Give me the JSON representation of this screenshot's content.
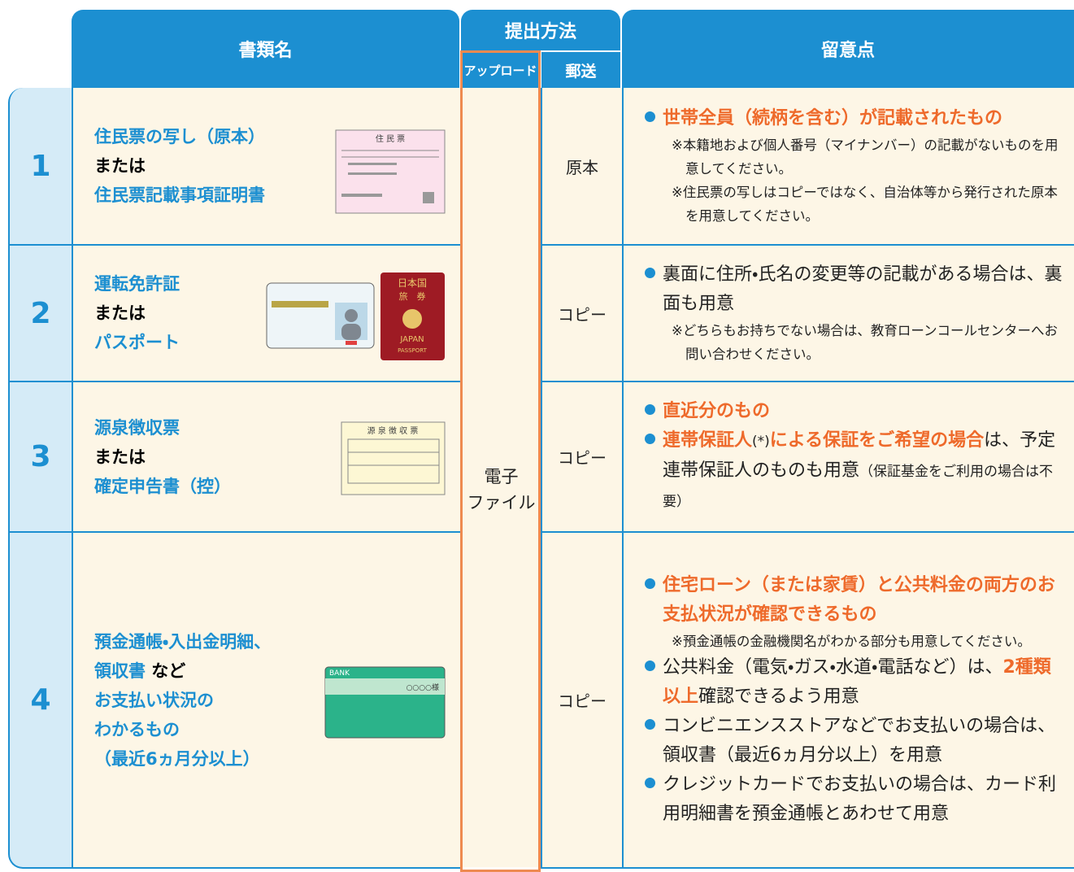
{
  "header": {
    "document_name": "書類名",
    "submission_method": "提出方法",
    "upload": "アップロード",
    "mail": "郵送",
    "notes": "留意点"
  },
  "upload_cell": [
    "電子",
    "ファイル"
  ],
  "rows": [
    {
      "number": "1",
      "document": [
        [
          {
            "text": "住民票の写し（原本）",
            "emphasis": true
          }
        ],
        [
          {
            "text": "または"
          }
        ],
        [
          {
            "text": "住民票記載事項証明書",
            "emphasis": true
          }
        ]
      ],
      "illustration": [
        "住 民 票"
      ],
      "mail": "原本",
      "notes": [
        {
          "kind": "bullet",
          "parts": [
            {
              "text": "世帯全員（続柄を含む）が記載されたもの",
              "emphasis": true
            }
          ]
        },
        {
          "kind": "remark",
          "parts": [
            {
              "text": "※本籍地および個人番号（マイナンバー）の記載がないものを用意してください。"
            }
          ]
        },
        {
          "kind": "remark",
          "parts": [
            {
              "text": "※住民票の写しはコピーではなく、自治体等から発行された原本を用意してください。"
            }
          ]
        }
      ]
    },
    {
      "number": "2",
      "document": [
        [
          {
            "text": "運転免許証",
            "emphasis": true
          }
        ],
        [
          {
            "text": "または"
          }
        ],
        [
          {
            "text": "パスポート",
            "emphasis": true
          }
        ]
      ],
      "illustration": [
        "日本国",
        "旅　券",
        "JAPAN",
        "PASSPORT"
      ],
      "mail": "コピー",
      "notes": [
        {
          "kind": "bullet",
          "parts": [
            {
              "text": "裏面に住所・氏名の変更等の記載がある場合は、裏面も用意"
            }
          ]
        },
        {
          "kind": "remark",
          "parts": [
            {
              "text": "※どちらもお持ちでない場合は、教育ローンコールセンターへお問い合わせください。"
            }
          ]
        }
      ]
    },
    {
      "number": "3",
      "document": [
        [
          {
            "text": "源泉徴収票",
            "emphasis": true
          }
        ],
        [
          {
            "text": "または"
          }
        ],
        [
          {
            "text": "確定申告書（控）",
            "emphasis": true
          }
        ]
      ],
      "illustration": [
        "源 泉 徴 収 票"
      ],
      "mail": "コピー",
      "notes": [
        {
          "kind": "bullet",
          "parts": [
            {
              "text": "直近分のもの",
              "emphasis": true
            }
          ]
        },
        {
          "kind": "bullet",
          "parts": [
            {
              "text": "連帯保証人",
              "emphasis": true
            },
            {
              "text": "(*)",
              "small": true
            },
            {
              "text": "による保証をご希望の場合",
              "emphasis": true
            },
            {
              "text": "は、予定連帯保証人のものも用意"
            },
            {
              "text": "（保証基金をご利用の場合は不要）",
              "small": true
            }
          ]
        }
      ]
    },
    {
      "number": "4",
      "document": [
        [
          {
            "text": "預金通帳・入出金明細、",
            "emphasis": true
          }
        ],
        [
          {
            "text": "領収書",
            "emphasis": true
          },
          {
            "text": " など"
          }
        ],
        [
          {
            "text": "お支払い状況の",
            "emphasis": true
          }
        ],
        [
          {
            "text": "わかるもの",
            "emphasis": true
          }
        ],
        [
          {
            "text": "（最近6ヵ月分以上）",
            "emphasis": true
          }
        ]
      ],
      "illustration": [
        "BANK",
        "○○○○様"
      ],
      "mail": "コピー",
      "notes": [
        {
          "kind": "bullet",
          "parts": [
            {
              "text": "住宅ローン（または家賃）と公共料金の両方のお支払状況が確認できるもの",
              "emphasis": true
            }
          ]
        },
        {
          "kind": "remark",
          "parts": [
            {
              "text": "※預金通帳の金融機関名がわかる部分も用意してください。"
            }
          ]
        },
        {
          "kind": "bullet",
          "parts": [
            {
              "text": "公共料金（電気・ガス・水道・電話など）は、"
            },
            {
              "text": "2種類以上",
              "emphasis": true
            },
            {
              "text": "確認できるよう用意"
            }
          ]
        },
        {
          "kind": "bullet",
          "parts": [
            {
              "text": "コンビニエンスストアなどでお支払いの場合は、領収書（最近6ヵ月分以上）を用意"
            }
          ]
        },
        {
          "kind": "bullet",
          "parts": [
            {
              "text": "クレジットカードでお支払いの場合は、カード利用明細書を預金通帳とあわせて用意"
            }
          ]
        }
      ]
    }
  ]
}
